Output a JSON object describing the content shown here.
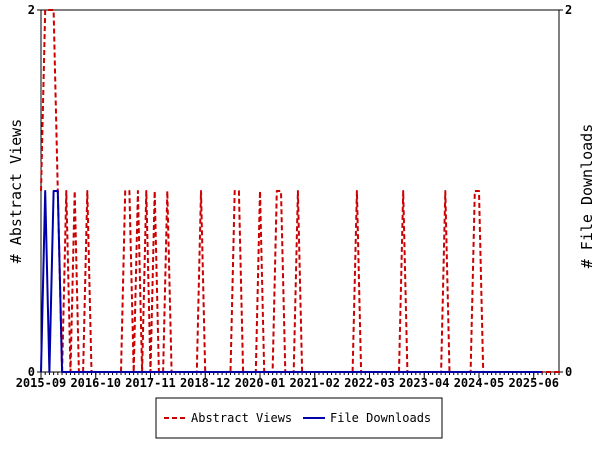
{
  "chart_data": {
    "type": "line",
    "ylabel_left": "# Abstract Views",
    "ylabel_right": "# File Downloads",
    "ylim_left": [
      0,
      2
    ],
    "ylim_right": [
      0,
      2
    ],
    "y_ticks_left": [
      "0",
      "2"
    ],
    "y_ticks_right": [
      "0",
      "2"
    ],
    "x_start": "2015-09",
    "x_end": "2025-06",
    "x_tick_labels": [
      "2015-09",
      "2016-10",
      "2017-11",
      "2018-12",
      "2020-01",
      "2021-02",
      "2022-03",
      "2023-04",
      "2024-05",
      "2025-06"
    ],
    "grid": false,
    "legend_position": "bottom",
    "series": [
      {
        "name": "Abstract Views",
        "color": "#cc0000",
        "dash": "dashed",
        "values": [
          1,
          2,
          2,
          2,
          1,
          0,
          1,
          0,
          1,
          0,
          0,
          1,
          0,
          0,
          0,
          0,
          0,
          0,
          0,
          0,
          1,
          1,
          0,
          1,
          0,
          1,
          0,
          1,
          0,
          0,
          1,
          0,
          0,
          0,
          0,
          0,
          0,
          0,
          1,
          0,
          0,
          0,
          0,
          0,
          0,
          0,
          1,
          1,
          0,
          0,
          0,
          0,
          1,
          0,
          0,
          0,
          1,
          1,
          0,
          0,
          0,
          1,
          0,
          0,
          0,
          0,
          0,
          0,
          0,
          0,
          0,
          0,
          0,
          0,
          0,
          1,
          0,
          0,
          0,
          0,
          0,
          0,
          0,
          0,
          0,
          0,
          1,
          0,
          0,
          0,
          0,
          0,
          0,
          0,
          0,
          0,
          1,
          0,
          0,
          0,
          0,
          0,
          0,
          1,
          1,
          0,
          0,
          0,
          0,
          0,
          0,
          0,
          0,
          0,
          0,
          0,
          0,
          0,
          0,
          0,
          0,
          0,
          0,
          0
        ]
      },
      {
        "name": "File Downloads",
        "color": "#0000aa",
        "dash": "solid",
        "values": [
          0,
          1,
          0,
          1,
          1,
          0,
          0,
          0,
          0,
          0,
          0,
          0,
          0,
          0,
          0,
          0,
          0,
          0,
          0,
          0,
          0,
          0,
          0,
          0,
          0,
          0,
          0,
          0,
          0,
          0,
          0,
          0,
          0,
          0,
          0,
          0,
          0,
          0,
          0,
          0,
          0,
          0,
          0,
          0,
          0,
          0,
          0,
          0,
          0,
          0,
          0,
          0,
          0,
          0,
          0,
          0,
          0,
          0,
          0,
          0,
          0,
          0,
          0,
          0,
          0,
          0,
          0,
          0,
          0,
          0,
          0,
          0,
          0,
          0,
          0,
          0,
          0,
          0,
          0,
          0,
          0,
          0,
          0,
          0,
          0,
          0,
          0,
          0,
          0,
          0,
          0,
          0,
          0,
          0,
          0,
          0,
          0,
          0,
          0,
          0,
          0,
          0,
          0,
          0,
          0,
          0,
          0,
          0,
          0,
          0,
          0,
          0,
          0,
          0,
          0,
          0,
          0,
          0,
          0,
          0
        ]
      }
    ]
  }
}
